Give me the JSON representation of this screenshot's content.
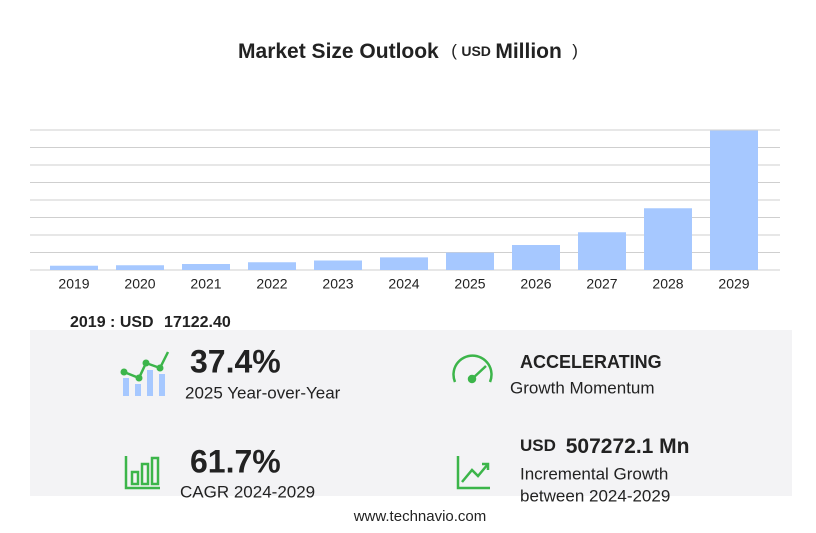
{
  "chart_data": {
    "type": "bar",
    "title": "Market Size Outlook",
    "title_unit": {
      "open": "(",
      "currency": "USD",
      "name": "Million",
      "close": ")"
    },
    "categories": [
      "2019",
      "2020",
      "2021",
      "2022",
      "2023",
      "2024",
      "2025",
      "2026",
      "2027",
      "2028",
      "2029"
    ],
    "values": [
      17122.4,
      19000,
      24000,
      31000,
      38000,
      50525,
      69420,
      100000,
      151000,
      247000,
      557800
    ],
    "color": "#a6c8ff",
    "ylim": [
      0,
      560000
    ],
    "yticks": [
      0,
      70000,
      140000,
      210000,
      280000,
      350000,
      420000,
      490000,
      560000
    ],
    "grid": true
  },
  "summary": {
    "base": {
      "label": "2019 : USD",
      "value": "17122.40"
    },
    "yoy": {
      "value": "37.4%",
      "label": "2025 Year-over-Year"
    },
    "momentum": {
      "value": "ACCELERATING",
      "label": "Growth Momentum"
    },
    "cagr": {
      "value": "61.7%",
      "label": "CAGR 2024-2029"
    },
    "incremental": {
      "currency": "USD",
      "value": "507272.1 Mn",
      "label": "Incremental Growth",
      "label2": "between 2024-2029"
    }
  },
  "footer": "www.technavio.com"
}
